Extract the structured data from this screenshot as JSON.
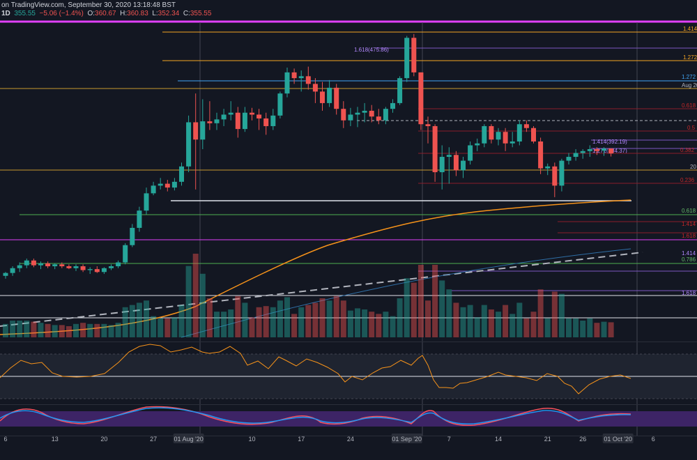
{
  "header": {
    "source": "on TradingView.com, September 30, 2020 13:18:48 BST",
    "interval": "1D",
    "price": "355.55",
    "change": "−5.06 (−1.4%)",
    "o_label": "O:",
    "o": "360.67",
    "h_label": "H:",
    "h": "360.83",
    "l_label": "L:",
    "l": "352.34",
    "c_label": "C:",
    "c": "355.55"
  },
  "x_axis": {
    "ticks": [
      {
        "label": "6",
        "day": 0
      },
      {
        "label": "13",
        "day": 7
      },
      {
        "label": "20",
        "day": 14
      },
      {
        "label": "27",
        "day": 21
      },
      {
        "label": "01 Aug '20",
        "day": 26,
        "boxed": true
      },
      {
        "label": "10",
        "day": 35
      },
      {
        "label": "17",
        "day": 42
      },
      {
        "label": "24",
        "day": 49
      },
      {
        "label": "01 Sep '20",
        "day": 57,
        "boxed": true
      },
      {
        "label": "7",
        "day": 63
      },
      {
        "label": "14",
        "day": 70
      },
      {
        "label": "21",
        "day": 77
      },
      {
        "label": "26",
        "day": 82
      },
      {
        "label": "01 Oct '20",
        "day": 87,
        "boxed": true
      },
      {
        "label": "6",
        "day": 92
      }
    ]
  },
  "level_labels": {
    "fib_1414_top": "1.414",
    "fib_1272_top": "1.272",
    "ext_1272_blue": "1.272",
    "aug_date": "Aug 20",
    "fib_0618_sep": "1.618(475.86)",
    "fib_0618_right": "0.618",
    "fib_05": "0.5",
    "fib_0382": "0.382",
    "ext_1414_purple": "1.414(392.19)",
    "ext_1272_purple": "1.272(384.37)",
    "lvl_20": "20",
    "fib_0236": "0.236",
    "green_0618": "0.618",
    "red_1414": "1.414",
    "red_1618": "1.618",
    "green_0786": "0.786",
    "purple_1414": "1.414",
    "purple_1618": "1.618"
  },
  "chart_data": {
    "type": "candlestick",
    "title": "",
    "ylim": [
      185,
      490
    ],
    "candles": [
      {
        "o": 228,
        "h": 232,
        "l": 225,
        "c": 231
      },
      {
        "o": 231,
        "h": 238,
        "l": 228,
        "c": 236
      },
      {
        "o": 236,
        "h": 242,
        "l": 232,
        "c": 239
      },
      {
        "o": 239,
        "h": 246,
        "l": 236,
        "c": 244
      },
      {
        "o": 244,
        "h": 246,
        "l": 237,
        "c": 239
      },
      {
        "o": 239,
        "h": 243,
        "l": 235,
        "c": 241
      },
      {
        "o": 241,
        "h": 243,
        "l": 236,
        "c": 238
      },
      {
        "o": 238,
        "h": 241,
        "l": 235,
        "c": 240
      },
      {
        "o": 240,
        "h": 242,
        "l": 236,
        "c": 238
      },
      {
        "o": 238,
        "h": 240,
        "l": 235,
        "c": 236
      },
      {
        "o": 236,
        "h": 240,
        "l": 233,
        "c": 238
      },
      {
        "o": 238,
        "h": 240,
        "l": 232,
        "c": 234
      },
      {
        "o": 234,
        "h": 237,
        "l": 230,
        "c": 235
      },
      {
        "o": 235,
        "h": 238,
        "l": 231,
        "c": 232
      },
      {
        "o": 232,
        "h": 237,
        "l": 230,
        "c": 236
      },
      {
        "o": 236,
        "h": 240,
        "l": 234,
        "c": 238
      },
      {
        "o": 238,
        "h": 244,
        "l": 236,
        "c": 242
      },
      {
        "o": 242,
        "h": 262,
        "l": 240,
        "c": 260
      },
      {
        "o": 260,
        "h": 282,
        "l": 258,
        "c": 278
      },
      {
        "o": 278,
        "h": 300,
        "l": 274,
        "c": 296
      },
      {
        "o": 296,
        "h": 320,
        "l": 292,
        "c": 314
      },
      {
        "o": 314,
        "h": 326,
        "l": 312,
        "c": 322
      },
      {
        "o": 322,
        "h": 330,
        "l": 318,
        "c": 324
      },
      {
        "o": 324,
        "h": 328,
        "l": 316,
        "c": 320
      },
      {
        "o": 320,
        "h": 330,
        "l": 317,
        "c": 326
      },
      {
        "o": 326,
        "h": 346,
        "l": 322,
        "c": 342
      },
      {
        "o": 342,
        "h": 395,
        "l": 336,
        "c": 388
      },
      {
        "o": 388,
        "h": 418,
        "l": 318,
        "c": 370
      },
      {
        "o": 370,
        "h": 412,
        "l": 360,
        "c": 389
      },
      {
        "o": 389,
        "h": 410,
        "l": 380,
        "c": 387
      },
      {
        "o": 387,
        "h": 398,
        "l": 380,
        "c": 391
      },
      {
        "o": 391,
        "h": 402,
        "l": 384,
        "c": 396
      },
      {
        "o": 396,
        "h": 410,
        "l": 390,
        "c": 398
      },
      {
        "o": 398,
        "h": 404,
        "l": 372,
        "c": 381
      },
      {
        "o": 381,
        "h": 404,
        "l": 378,
        "c": 398
      },
      {
        "o": 398,
        "h": 403,
        "l": 390,
        "c": 396
      },
      {
        "o": 396,
        "h": 402,
        "l": 380,
        "c": 392
      },
      {
        "o": 392,
        "h": 398,
        "l": 375,
        "c": 384
      },
      {
        "o": 384,
        "h": 402,
        "l": 380,
        "c": 395
      },
      {
        "o": 395,
        "h": 420,
        "l": 392,
        "c": 418
      },
      {
        "o": 418,
        "h": 445,
        "l": 414,
        "c": 440
      },
      {
        "o": 440,
        "h": 444,
        "l": 428,
        "c": 434
      },
      {
        "o": 434,
        "h": 442,
        "l": 420,
        "c": 436
      },
      {
        "o": 436,
        "h": 446,
        "l": 422,
        "c": 428
      },
      {
        "o": 428,
        "h": 434,
        "l": 408,
        "c": 420
      },
      {
        "o": 420,
        "h": 430,
        "l": 400,
        "c": 408
      },
      {
        "o": 408,
        "h": 432,
        "l": 404,
        "c": 424
      },
      {
        "o": 424,
        "h": 428,
        "l": 396,
        "c": 402
      },
      {
        "o": 402,
        "h": 410,
        "l": 382,
        "c": 390
      },
      {
        "o": 390,
        "h": 403,
        "l": 384,
        "c": 396
      },
      {
        "o": 396,
        "h": 404,
        "l": 383,
        "c": 398
      },
      {
        "o": 398,
        "h": 408,
        "l": 388,
        "c": 400
      },
      {
        "o": 400,
        "h": 406,
        "l": 388,
        "c": 394
      },
      {
        "o": 394,
        "h": 402,
        "l": 386,
        "c": 390
      },
      {
        "o": 390,
        "h": 404,
        "l": 386,
        "c": 402
      },
      {
        "o": 402,
        "h": 412,
        "l": 398,
        "c": 408
      },
      {
        "o": 408,
        "h": 436,
        "l": 406,
        "c": 434
      },
      {
        "o": 434,
        "h": 478,
        "l": 430,
        "c": 476
      },
      {
        "o": 476,
        "h": 480,
        "l": 436,
        "c": 440
      },
      {
        "o": 440,
        "h": 440,
        "l": 380,
        "c": 386
      },
      {
        "o": 386,
        "h": 394,
        "l": 366,
        "c": 384
      },
      {
        "o": 384,
        "h": 386,
        "l": 326,
        "c": 336
      },
      {
        "o": 336,
        "h": 364,
        "l": 318,
        "c": 352
      },
      {
        "o": 352,
        "h": 362,
        "l": 324,
        "c": 354
      },
      {
        "o": 354,
        "h": 358,
        "l": 332,
        "c": 338
      },
      {
        "o": 338,
        "h": 352,
        "l": 330,
        "c": 348
      },
      {
        "o": 348,
        "h": 368,
        "l": 344,
        "c": 364
      },
      {
        "o": 364,
        "h": 371,
        "l": 358,
        "c": 366
      },
      {
        "o": 366,
        "h": 386,
        "l": 362,
        "c": 384
      },
      {
        "o": 384,
        "h": 386,
        "l": 366,
        "c": 370
      },
      {
        "o": 370,
        "h": 382,
        "l": 364,
        "c": 378
      },
      {
        "o": 378,
        "h": 382,
        "l": 358,
        "c": 366
      },
      {
        "o": 366,
        "h": 378,
        "l": 362,
        "c": 368
      },
      {
        "o": 368,
        "h": 390,
        "l": 364,
        "c": 386
      },
      {
        "o": 386,
        "h": 390,
        "l": 378,
        "c": 382
      },
      {
        "o": 382,
        "h": 384,
        "l": 366,
        "c": 368
      },
      {
        "o": 368,
        "h": 372,
        "l": 334,
        "c": 340
      },
      {
        "o": 340,
        "h": 345,
        "l": 333,
        "c": 342
      },
      {
        "o": 342,
        "h": 346,
        "l": 310,
        "c": 322
      },
      {
        "o": 322,
        "h": 350,
        "l": 316,
        "c": 348
      },
      {
        "o": 348,
        "h": 356,
        "l": 344,
        "c": 352
      },
      {
        "o": 352,
        "h": 360,
        "l": 348,
        "c": 356
      },
      {
        "o": 356,
        "h": 360,
        "l": 350,
        "c": 358
      },
      {
        "o": 358,
        "h": 364,
        "l": 352,
        "c": 360
      },
      {
        "o": 360,
        "h": 362,
        "l": 354,
        "c": 358
      },
      {
        "o": 358.5,
        "h": 362,
        "l": 353,
        "c": 360.6
      },
      {
        "o": 360.67,
        "h": 360.83,
        "l": 352.34,
        "c": 355.55
      }
    ]
  }
}
